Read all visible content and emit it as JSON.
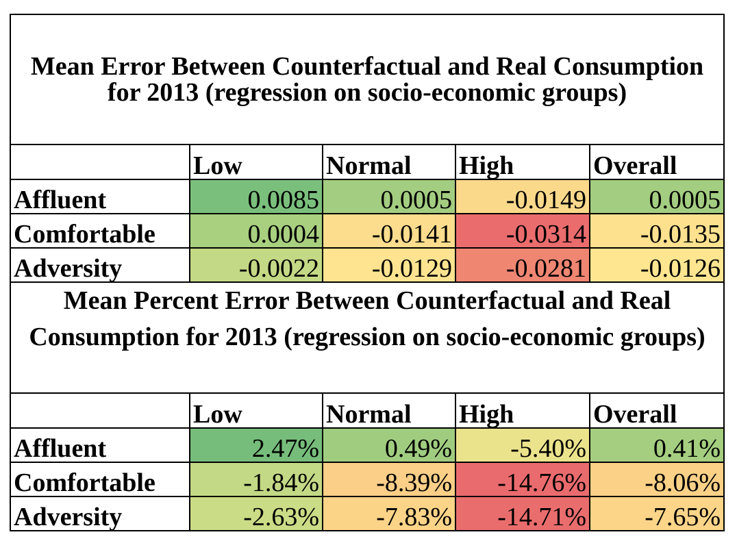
{
  "columns": [
    "Low",
    "Normal",
    "High",
    "Overall"
  ],
  "tables": [
    {
      "title": "Mean Error Between Counterfactual and Real Consumption for 2013 (regression on socio-economic groups)",
      "rows": [
        {
          "label": "Affluent",
          "cells": [
            {
              "value": "0.0085",
              "color": "#7bbf7d"
            },
            {
              "value": "0.0005",
              "color": "#a3cd80"
            },
            {
              "value": "-0.0149",
              "color": "#fbd98b"
            },
            {
              "value": "0.0005",
              "color": "#a3cd80"
            }
          ]
        },
        {
          "label": "Comfortable",
          "cells": [
            {
              "value": "0.0004",
              "color": "#a8d07f"
            },
            {
              "value": "-0.0141",
              "color": "#fcdd8d"
            },
            {
              "value": "-0.0314",
              "color": "#ea6c6d"
            },
            {
              "value": "-0.0135",
              "color": "#fde18f"
            }
          ]
        },
        {
          "label": "Adversity",
          "cells": [
            {
              "value": "-0.0022",
              "color": "#c4d985"
            },
            {
              "value": "-0.0129",
              "color": "#fee490"
            },
            {
              "value": "-0.0281",
              "color": "#ef8672"
            },
            {
              "value": "-0.0126",
              "color": "#fee691"
            }
          ]
        }
      ]
    },
    {
      "title": "Mean Percent Error Between Counterfactual and Real Consumption for 2013 (regression on socio-economic groups)",
      "rows": [
        {
          "label": "Affluent",
          "cells": [
            {
              "value": "2.47%",
              "color": "#76bd7b"
            },
            {
              "value": "0.49%",
              "color": "#a0cc80"
            },
            {
              "value": "-5.40%",
              "color": "#ebe38c"
            },
            {
              "value": "0.41%",
              "color": "#a5ce80"
            }
          ]
        },
        {
          "label": "Comfortable",
          "cells": [
            {
              "value": "-1.84%",
              "color": "#c3d985"
            },
            {
              "value": "-8.39%",
              "color": "#fbcf87"
            },
            {
              "value": "-14.76%",
              "color": "#ea6b6d"
            },
            {
              "value": "-8.06%",
              "color": "#fbd187"
            }
          ]
        },
        {
          "label": "Adversity",
          "cells": [
            {
              "value": "-2.63%",
              "color": "#cbdc86"
            },
            {
              "value": "-7.83%",
              "color": "#fcd488"
            },
            {
              "value": "-14.71%",
              "color": "#ea6d6d"
            },
            {
              "value": "-7.65%",
              "color": "#fcd589"
            }
          ]
        }
      ]
    }
  ]
}
